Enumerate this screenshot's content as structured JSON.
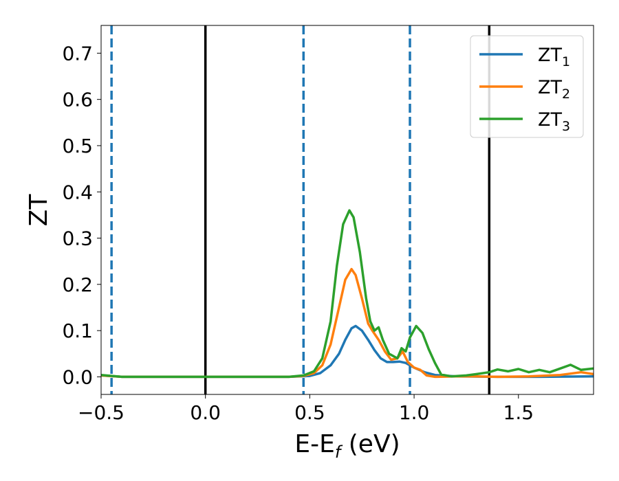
{
  "chart_data": {
    "type": "line",
    "xlabel": {
      "main": "E-E",
      "sub": "f",
      "tail": " (eV)"
    },
    "ylabel": "ZT",
    "xlim": [
      -0.5,
      1.86
    ],
    "ylim": [
      -0.038,
      0.76
    ],
    "xticks": [
      {
        "v": -0.5,
        "label": "−0.5"
      },
      {
        "v": 0.0,
        "label": "0.0"
      },
      {
        "v": 0.5,
        "label": "0.5"
      },
      {
        "v": 1.0,
        "label": "1.0"
      },
      {
        "v": 1.5,
        "label": "1.5"
      }
    ],
    "yticks": [
      {
        "v": 0.0,
        "label": "0.0"
      },
      {
        "v": 0.1,
        "label": "0.1"
      },
      {
        "v": 0.2,
        "label": "0.2"
      },
      {
        "v": 0.3,
        "label": "0.3"
      },
      {
        "v": 0.4,
        "label": "0.4"
      },
      {
        "v": 0.5,
        "label": "0.5"
      },
      {
        "v": 0.6,
        "label": "0.6"
      },
      {
        "v": 0.7,
        "label": "0.7"
      }
    ],
    "grid": false,
    "legend_position": "top-right",
    "vlines": [
      {
        "x": -0.45,
        "style": "dashed",
        "color": "#1f77b4"
      },
      {
        "x": 0.0,
        "style": "solid",
        "color": "#000000"
      },
      {
        "x": 0.47,
        "style": "dashed",
        "color": "#1f77b4"
      },
      {
        "x": 0.98,
        "style": "dashed",
        "color": "#1f77b4"
      },
      {
        "x": 1.36,
        "style": "solid",
        "color": "#000000"
      }
    ],
    "series": [
      {
        "name": "ZT",
        "sub": "1",
        "color": "#1f77b4",
        "points": [
          [
            -0.5,
            0.003
          ],
          [
            -0.4,
            0.0
          ],
          [
            0.0,
            0.0
          ],
          [
            0.4,
            0.0
          ],
          [
            0.5,
            0.002
          ],
          [
            0.55,
            0.008
          ],
          [
            0.6,
            0.025
          ],
          [
            0.64,
            0.05
          ],
          [
            0.67,
            0.08
          ],
          [
            0.7,
            0.105
          ],
          [
            0.72,
            0.11
          ],
          [
            0.75,
            0.1
          ],
          [
            0.78,
            0.08
          ],
          [
            0.81,
            0.058
          ],
          [
            0.84,
            0.04
          ],
          [
            0.87,
            0.032
          ],
          [
            0.9,
            0.032
          ],
          [
            0.93,
            0.033
          ],
          [
            0.96,
            0.03
          ],
          [
            1.0,
            0.02
          ],
          [
            1.05,
            0.01
          ],
          [
            1.1,
            0.004
          ],
          [
            1.2,
            0.001
          ],
          [
            1.4,
            0.0
          ],
          [
            1.6,
            0.0
          ],
          [
            1.86,
            0.001
          ]
        ]
      },
      {
        "name": "ZT",
        "sub": "2",
        "color": "#ff7f0e",
        "points": [
          [
            -0.5,
            0.003
          ],
          [
            -0.4,
            0.0
          ],
          [
            0.0,
            0.0
          ],
          [
            0.4,
            0.0
          ],
          [
            0.47,
            0.002
          ],
          [
            0.52,
            0.008
          ],
          [
            0.56,
            0.025
          ],
          [
            0.6,
            0.07
          ],
          [
            0.64,
            0.15
          ],
          [
            0.67,
            0.21
          ],
          [
            0.7,
            0.233
          ],
          [
            0.72,
            0.22
          ],
          [
            0.75,
            0.17
          ],
          [
            0.78,
            0.115
          ],
          [
            0.8,
            0.1
          ],
          [
            0.83,
            0.08
          ],
          [
            0.86,
            0.055
          ],
          [
            0.89,
            0.037
          ],
          [
            0.92,
            0.04
          ],
          [
            0.945,
            0.055
          ],
          [
            0.97,
            0.032
          ],
          [
            1.0,
            0.02
          ],
          [
            1.03,
            0.015
          ],
          [
            1.06,
            0.003
          ],
          [
            1.1,
            0.0
          ],
          [
            1.2,
            0.001
          ],
          [
            1.3,
            0.001
          ],
          [
            1.4,
            0.0
          ],
          [
            1.55,
            0.001
          ],
          [
            1.7,
            0.004
          ],
          [
            1.8,
            0.01
          ],
          [
            1.86,
            0.006
          ]
        ]
      },
      {
        "name": "ZT",
        "sub": "3",
        "color": "#2ca02c",
        "points": [
          [
            -0.5,
            0.004
          ],
          [
            -0.4,
            0.0
          ],
          [
            0.0,
            0.0
          ],
          [
            0.4,
            0.0
          ],
          [
            0.47,
            0.003
          ],
          [
            0.52,
            0.012
          ],
          [
            0.56,
            0.04
          ],
          [
            0.6,
            0.12
          ],
          [
            0.63,
            0.24
          ],
          [
            0.66,
            0.33
          ],
          [
            0.69,
            0.36
          ],
          [
            0.71,
            0.345
          ],
          [
            0.74,
            0.27
          ],
          [
            0.77,
            0.17
          ],
          [
            0.79,
            0.12
          ],
          [
            0.81,
            0.1
          ],
          [
            0.83,
            0.107
          ],
          [
            0.85,
            0.08
          ],
          [
            0.88,
            0.05
          ],
          [
            0.92,
            0.04
          ],
          [
            0.94,
            0.062
          ],
          [
            0.96,
            0.055
          ],
          [
            0.98,
            0.085
          ],
          [
            1.01,
            0.11
          ],
          [
            1.04,
            0.095
          ],
          [
            1.07,
            0.06
          ],
          [
            1.1,
            0.03
          ],
          [
            1.13,
            0.005
          ],
          [
            1.18,
            0.001
          ],
          [
            1.25,
            0.003
          ],
          [
            1.3,
            0.006
          ],
          [
            1.36,
            0.01
          ],
          [
            1.4,
            0.016
          ],
          [
            1.45,
            0.012
          ],
          [
            1.5,
            0.017
          ],
          [
            1.55,
            0.01
          ],
          [
            1.6,
            0.015
          ],
          [
            1.65,
            0.01
          ],
          [
            1.7,
            0.018
          ],
          [
            1.75,
            0.026
          ],
          [
            1.8,
            0.015
          ],
          [
            1.86,
            0.018
          ]
        ]
      }
    ]
  }
}
